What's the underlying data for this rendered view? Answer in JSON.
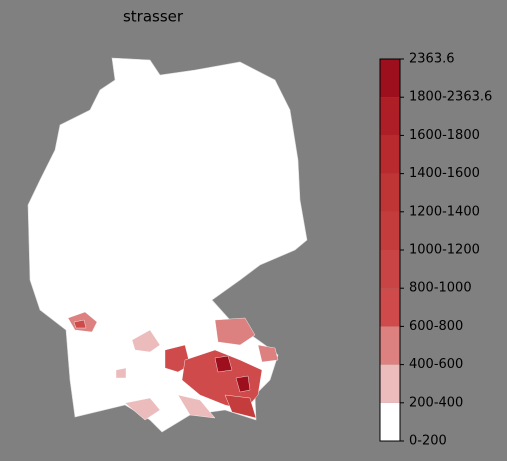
{
  "title": "strasser",
  "colorbar": {
    "labels": [
      "0-200",
      "200-400",
      "400-600",
      "600-800",
      "800-1000",
      "1000-1200",
      "1200-1400",
      "1400-1600",
      "1600-1800",
      "1800-2363.6",
      "2363.6"
    ],
    "colors": [
      "#ffffff",
      "#ecbcbc",
      "#dc8080",
      "#cf4a4a",
      "#c94444",
      "#c43c3c",
      "#bf3434",
      "#b82a2e",
      "#ad1e26",
      "#9e0f1e"
    ]
  }
}
